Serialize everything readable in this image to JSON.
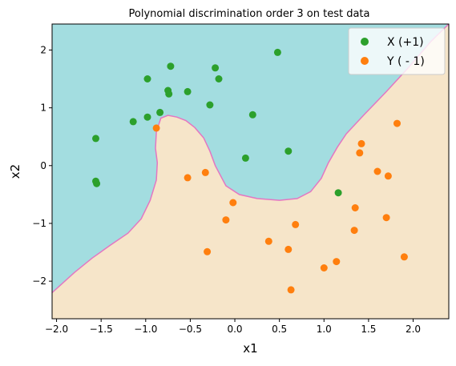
{
  "chart_data": {
    "type": "scatter",
    "title": "Polynomial discrimination order 3 on test data",
    "xlabel": "x1",
    "ylabel": "x2",
    "xlim": [
      -2.05,
      2.4
    ],
    "ylim": [
      -2.65,
      2.45
    ],
    "xticks": [
      -2.0,
      -1.5,
      -1.0,
      -0.5,
      0.0,
      0.5,
      1.0,
      1.5,
      2.0
    ],
    "xtick_labels": [
      "−2.0",
      "−1.5",
      "−1.0",
      "−0.5",
      "0.0",
      "0.5",
      "1.0",
      "1.5",
      "2.0"
    ],
    "yticks": [
      2,
      1,
      0,
      -1,
      -2
    ],
    "ytick_labels": [
      "2",
      "1",
      "0",
      "−1",
      "−2"
    ],
    "grid": false,
    "legend_position": "top-right",
    "colors": {
      "region_pos": "#a3dde0",
      "region_neg": "#f6e5c9",
      "boundary": "#e377c2",
      "series_pos": "#2ca02c",
      "series_neg": "#ff7f0e"
    },
    "boundary_curve": [
      [
        -2.05,
        -2.2
      ],
      [
        -1.8,
        -1.85
      ],
      [
        -1.6,
        -1.6
      ],
      [
        -1.4,
        -1.38
      ],
      [
        -1.2,
        -1.17
      ],
      [
        -1.05,
        -0.92
      ],
      [
        -0.95,
        -0.6
      ],
      [
        -0.88,
        -0.25
      ],
      [
        -0.87,
        0.05
      ],
      [
        -0.89,
        0.3
      ],
      [
        -0.88,
        0.58
      ],
      [
        -0.83,
        0.82
      ],
      [
        -0.75,
        0.87
      ],
      [
        -0.65,
        0.84
      ],
      [
        -0.55,
        0.78
      ],
      [
        -0.45,
        0.66
      ],
      [
        -0.35,
        0.48
      ],
      [
        -0.28,
        0.25
      ],
      [
        -0.22,
        0.0
      ],
      [
        -0.1,
        -0.35
      ],
      [
        0.05,
        -0.5
      ],
      [
        0.25,
        -0.57
      ],
      [
        0.5,
        -0.6
      ],
      [
        0.7,
        -0.57
      ],
      [
        0.85,
        -0.45
      ],
      [
        0.97,
        -0.22
      ],
      [
        1.05,
        0.05
      ],
      [
        1.15,
        0.32
      ],
      [
        1.25,
        0.55
      ],
      [
        1.45,
        0.88
      ],
      [
        1.7,
        1.28
      ],
      [
        1.95,
        1.7
      ],
      [
        2.2,
        2.15
      ],
      [
        2.4,
        2.45
      ]
    ],
    "series": [
      {
        "name": "X (+1)",
        "color": "#2ca02c",
        "points": [
          [
            0.48,
            1.96
          ],
          [
            -0.72,
            1.72
          ],
          [
            -0.22,
            1.69
          ],
          [
            -0.98,
            1.5
          ],
          [
            -0.18,
            1.5
          ],
          [
            -0.75,
            1.3
          ],
          [
            -0.74,
            1.24
          ],
          [
            -0.53,
            1.28
          ],
          [
            -0.28,
            1.05
          ],
          [
            -0.84,
            0.92
          ],
          [
            0.2,
            0.88
          ],
          [
            -0.98,
            0.84
          ],
          [
            -1.14,
            0.76
          ],
          [
            -1.56,
            0.47
          ],
          [
            0.6,
            0.25
          ],
          [
            0.12,
            0.13
          ],
          [
            -1.56,
            -0.27
          ],
          [
            -1.55,
            -0.31
          ],
          [
            1.16,
            -0.47
          ]
        ]
      },
      {
        "name": "Y ( - 1)",
        "color": "#ff7f0e",
        "points": [
          [
            1.82,
            0.73
          ],
          [
            -0.88,
            0.65
          ],
          [
            1.42,
            0.38
          ],
          [
            1.4,
            0.22
          ],
          [
            1.6,
            -0.1
          ],
          [
            1.72,
            -0.18
          ],
          [
            -0.33,
            -0.12
          ],
          [
            -0.53,
            -0.21
          ],
          [
            1.35,
            -0.73
          ],
          [
            -0.02,
            -0.64
          ],
          [
            -0.1,
            -0.94
          ],
          [
            1.7,
            -0.9
          ],
          [
            0.68,
            -1.02
          ],
          [
            1.34,
            -1.12
          ],
          [
            0.38,
            -1.31
          ],
          [
            0.6,
            -1.45
          ],
          [
            -0.31,
            -1.49
          ],
          [
            1.9,
            -1.58
          ],
          [
            1.14,
            -1.66
          ],
          [
            1.0,
            -1.77
          ],
          [
            0.63,
            -2.15
          ]
        ]
      }
    ]
  }
}
